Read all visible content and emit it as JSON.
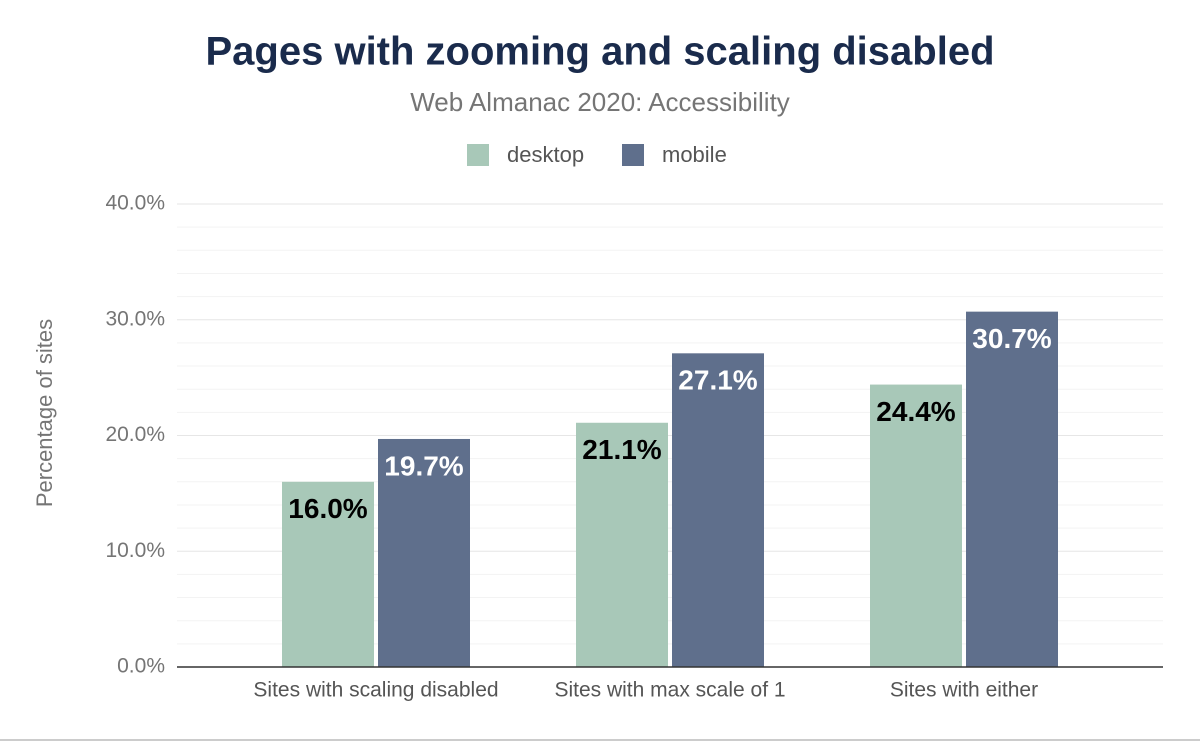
{
  "chart_data": {
    "type": "bar",
    "title": "Pages with zooming and scaling disabled",
    "subtitle": "Web Almanac 2020: Accessibility",
    "y_axis_label": "Percentage of sites",
    "categories": [
      "Sites with scaling disabled",
      "Sites with max scale of 1",
      "Sites with either"
    ],
    "series": [
      {
        "name": "desktop",
        "color": "#a8c8b8",
        "label_color": "#000000",
        "values": [
          16.0,
          21.1,
          24.4
        ],
        "value_labels": [
          "16.0%",
          "21.1%",
          "24.4%"
        ]
      },
      {
        "name": "mobile",
        "color": "#5f6f8c",
        "label_color": "#ffffff",
        "values": [
          19.7,
          27.1,
          30.7
        ],
        "value_labels": [
          "19.7%",
          "27.1%",
          "30.7%"
        ]
      }
    ],
    "ylim": [
      0,
      40
    ],
    "yticks": [
      {
        "value": 0,
        "label": "0.0%"
      },
      {
        "value": 10,
        "label": "10.0%"
      },
      {
        "value": 20,
        "label": "20.0%"
      },
      {
        "value": 30,
        "label": "30.0%"
      },
      {
        "value": 40,
        "label": "40.0%"
      }
    ],
    "minor_yticks": [
      2,
      4,
      6,
      8,
      12,
      14,
      16,
      18,
      22,
      24,
      26,
      28,
      32,
      34,
      36,
      38
    ],
    "grid": true,
    "legend": "top"
  }
}
